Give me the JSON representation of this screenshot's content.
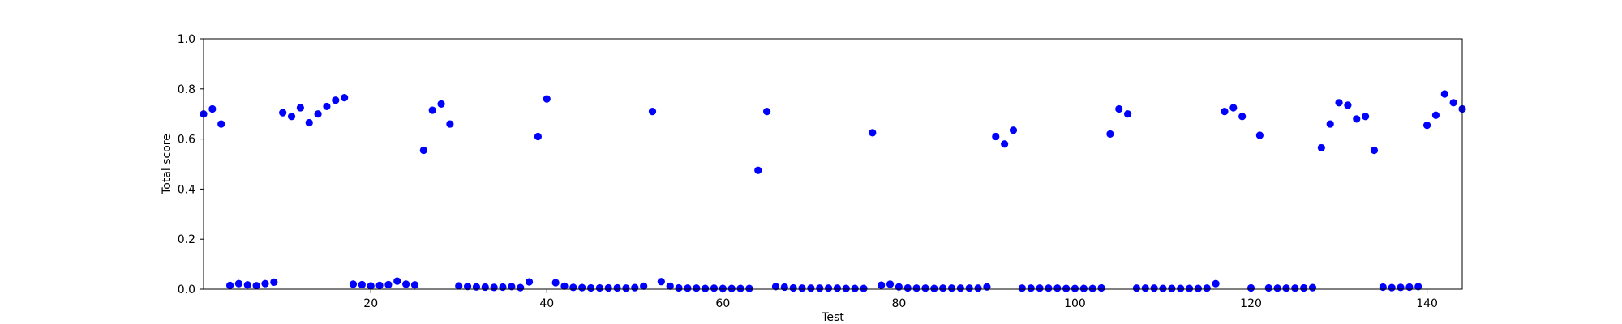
{
  "chart_data": {
    "type": "scatter",
    "title": "",
    "xlabel": "Test",
    "ylabel": "Total score",
    "xlim": [
      1,
      144
    ],
    "ylim": [
      0.0,
      1.0
    ],
    "grid": false,
    "marker_color": "#0000ff",
    "xticks": [
      20,
      40,
      60,
      80,
      100,
      120,
      140
    ],
    "yticks": [
      0.0,
      0.2,
      0.4,
      0.6,
      0.8,
      1.0
    ],
    "xtick_labels": [
      "20",
      "40",
      "60",
      "80",
      "100",
      "120",
      "140"
    ],
    "ytick_labels": [
      "0.0",
      "0.2",
      "0.4",
      "0.6",
      "0.8",
      "1.0"
    ],
    "x": [
      1,
      2,
      3,
      4,
      5,
      6,
      7,
      8,
      9,
      10,
      11,
      12,
      13,
      14,
      15,
      16,
      17,
      18,
      19,
      20,
      21,
      22,
      23,
      24,
      25,
      26,
      27,
      28,
      29,
      30,
      31,
      32,
      33,
      34,
      35,
      36,
      37,
      38,
      39,
      40,
      41,
      42,
      43,
      44,
      45,
      46,
      47,
      48,
      49,
      50,
      51,
      52,
      53,
      54,
      55,
      56,
      57,
      58,
      59,
      60,
      61,
      62,
      63,
      64,
      65,
      66,
      67,
      68,
      69,
      70,
      71,
      72,
      73,
      74,
      75,
      76,
      77,
      78,
      79,
      80,
      81,
      82,
      83,
      84,
      85,
      86,
      87,
      88,
      89,
      90,
      91,
      92,
      93,
      94,
      95,
      96,
      97,
      98,
      99,
      100,
      101,
      102,
      103,
      104,
      105,
      106,
      107,
      108,
      109,
      110,
      111,
      112,
      113,
      114,
      115,
      116,
      117,
      118,
      119,
      120,
      121,
      122,
      123,
      124,
      125,
      126,
      127,
      128,
      129,
      130,
      131,
      132,
      133,
      134,
      135,
      136,
      137,
      138,
      139,
      140,
      141,
      142,
      143,
      144
    ],
    "y": [
      0.7,
      0.72,
      0.66,
      0.015,
      0.022,
      0.017,
      0.014,
      0.022,
      0.028,
      0.705,
      0.69,
      0.725,
      0.665,
      0.7,
      0.73,
      0.755,
      0.765,
      0.02,
      0.018,
      0.013,
      0.015,
      0.018,
      0.032,
      0.02,
      0.017,
      0.555,
      0.715,
      0.74,
      0.66,
      0.013,
      0.011,
      0.009,
      0.008,
      0.007,
      0.008,
      0.01,
      0.006,
      0.029,
      0.61,
      0.76,
      0.026,
      0.012,
      0.007,
      0.006,
      0.005,
      0.005,
      0.005,
      0.005,
      0.004,
      0.006,
      0.012,
      0.71,
      0.03,
      0.012,
      0.005,
      0.004,
      0.004,
      0.003,
      0.004,
      0.003,
      0.003,
      0.003,
      0.003,
      0.475,
      0.71,
      0.01,
      0.008,
      0.005,
      0.004,
      0.004,
      0.004,
      0.004,
      0.004,
      0.003,
      0.003,
      0.003,
      0.625,
      0.016,
      0.02,
      0.009,
      0.005,
      0.004,
      0.004,
      0.003,
      0.004,
      0.004,
      0.004,
      0.004,
      0.004,
      0.009,
      0.61,
      0.58,
      0.635,
      0.004,
      0.004,
      0.004,
      0.004,
      0.004,
      0.003,
      0.003,
      0.003,
      0.003,
      0.005,
      0.62,
      0.72,
      0.7,
      0.004,
      0.004,
      0.004,
      0.003,
      0.003,
      0.003,
      0.003,
      0.003,
      0.004,
      0.022,
      0.71,
      0.725,
      0.69,
      0.005,
      0.615,
      0.005,
      0.004,
      0.004,
      0.004,
      0.005,
      0.006,
      0.565,
      0.66,
      0.745,
      0.735,
      0.68,
      0.69,
      0.555,
      0.008,
      0.006,
      0.007,
      0.008,
      0.01,
      0.655,
      0.695,
      0.78,
      0.745,
      0.72
    ]
  }
}
